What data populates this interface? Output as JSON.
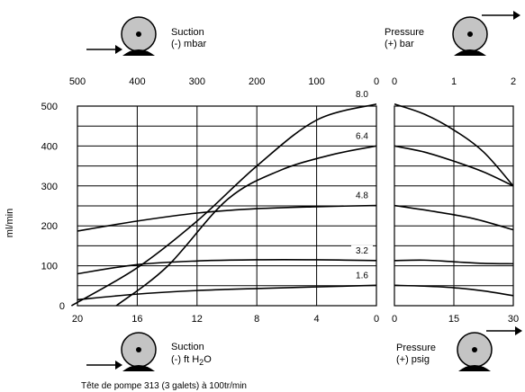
{
  "chart_data": {
    "type": "line",
    "footer": "Tête de pompe 313 (3 galets) à 100tr/min",
    "ylabel": "ml/min",
    "ylim": [
      0,
      500
    ],
    "y_ticks": [
      "500",
      "400",
      "300",
      "200",
      "100",
      "0"
    ],
    "suction": {
      "top_title_line1": "Suction",
      "top_title_line2": "(-) mbar",
      "top_ticks": [
        "500",
        "400",
        "300",
        "200",
        "100",
        "0"
      ],
      "top_lim": [
        500,
        0
      ],
      "bottom_title_line1": "Suction",
      "bottom_title_line2_prefix": "(-) ft H",
      "bottom_title_sub": "2",
      "bottom_title_suffix": "O",
      "bottom_ticks": [
        "20",
        "16",
        "12",
        "8",
        "4",
        "0"
      ],
      "bottom_lim": [
        20,
        0
      ]
    },
    "pressure": {
      "top_title_line1": "Pressure",
      "top_title_line2": "(+) bar",
      "top_ticks": [
        "0",
        "1",
        "2"
      ],
      "top_lim": [
        0,
        2
      ],
      "bottom_title_line1": "Pressure",
      "bottom_title_line2": "(+) psig",
      "bottom_ticks": [
        "0",
        "15",
        "30"
      ],
      "bottom_lim": [
        0,
        30
      ]
    },
    "series": [
      {
        "name": "8.0",
        "suction": [
          [
            20.4,
            0
          ],
          [
            16,
            95
          ],
          [
            12,
            212
          ],
          [
            8,
            350
          ],
          [
            4,
            465
          ],
          [
            0,
            505
          ]
        ],
        "pressure": [
          [
            0,
            505
          ],
          [
            7.5,
            480
          ],
          [
            15,
            440
          ],
          [
            22.5,
            385
          ],
          [
            30,
            300
          ]
        ]
      },
      {
        "name": "6.4",
        "suction": [
          [
            17.4,
            0
          ],
          [
            14,
            98
          ],
          [
            10,
            265
          ],
          [
            6.5,
            338
          ],
          [
            3,
            378
          ],
          [
            0,
            400
          ]
        ],
        "pressure": [
          [
            0,
            400
          ],
          [
            7.5,
            385
          ],
          [
            15,
            362
          ],
          [
            22.5,
            335
          ],
          [
            30,
            300
          ]
        ]
      },
      {
        "name": "4.8",
        "suction": [
          [
            20,
            187
          ],
          [
            16,
            212
          ],
          [
            12,
            232
          ],
          [
            8,
            243
          ],
          [
            4,
            248
          ],
          [
            0,
            251
          ]
        ],
        "pressure": [
          [
            0,
            251
          ],
          [
            10,
            236
          ],
          [
            20,
            218
          ],
          [
            30,
            190
          ]
        ]
      },
      {
        "name": "3.2",
        "suction": [
          [
            20,
            80
          ],
          [
            16,
            103
          ],
          [
            12,
            112
          ],
          [
            8,
            115
          ],
          [
            4,
            115
          ],
          [
            0,
            113
          ]
        ],
        "pressure": [
          [
            0,
            113
          ],
          [
            7.5,
            114
          ],
          [
            15,
            110
          ],
          [
            22.5,
            106
          ],
          [
            30,
            105
          ]
        ]
      },
      {
        "name": "1.6",
        "suction": [
          [
            20,
            15
          ],
          [
            16,
            29
          ],
          [
            12,
            38
          ],
          [
            8,
            43
          ],
          [
            4,
            47
          ],
          [
            0,
            51
          ]
        ],
        "pressure": [
          [
            0,
            51
          ],
          [
            7.5,
            49
          ],
          [
            15,
            45
          ],
          [
            22.5,
            37
          ],
          [
            30,
            25
          ]
        ]
      }
    ]
  }
}
